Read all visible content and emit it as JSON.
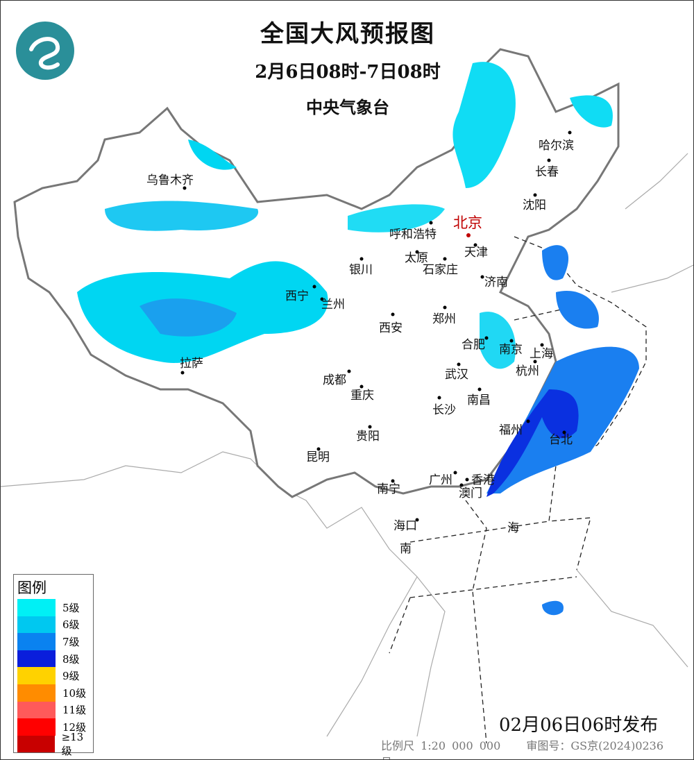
{
  "header": {
    "title": "全国大风预报图",
    "period": "2月6日08时-7日08时",
    "issuer": "中央气象台",
    "logo_icon": "cma-logo"
  },
  "cities": [
    {
      "name": "乌鲁木齐"
    },
    {
      "name": "哈尔滨"
    },
    {
      "name": "长春"
    },
    {
      "name": "沈阳"
    },
    {
      "name": "北京",
      "capital": true
    },
    {
      "name": "呼和浩特"
    },
    {
      "name": "天津"
    },
    {
      "name": "太原"
    },
    {
      "name": "石家庄"
    },
    {
      "name": "银川"
    },
    {
      "name": "济南"
    },
    {
      "name": "西宁"
    },
    {
      "name": "兰州"
    },
    {
      "name": "西安"
    },
    {
      "name": "郑州"
    },
    {
      "name": "合肥"
    },
    {
      "name": "南京"
    },
    {
      "name": "上海"
    },
    {
      "name": "拉萨"
    },
    {
      "name": "杭州"
    },
    {
      "name": "成都"
    },
    {
      "name": "武汉"
    },
    {
      "name": "重庆"
    },
    {
      "name": "长沙"
    },
    {
      "name": "南昌"
    },
    {
      "name": "福州"
    },
    {
      "name": "贵阳"
    },
    {
      "name": "台北"
    },
    {
      "name": "昆明"
    },
    {
      "name": "广州"
    },
    {
      "name": "香港"
    },
    {
      "name": "澳门"
    },
    {
      "name": "南宁"
    },
    {
      "name": "海口"
    }
  ],
  "sea_labels": [
    "南",
    "海"
  ],
  "legend": {
    "title": "图例",
    "items": [
      {
        "label": "5级",
        "color": "#00f0f5"
      },
      {
        "label": "6级",
        "color": "#00c8f0"
      },
      {
        "label": "7级",
        "color": "#0a82f0"
      },
      {
        "label": "8级",
        "color": "#0a1edc"
      },
      {
        "label": "9级",
        "color": "#ffd200"
      },
      {
        "label": "10级",
        "color": "#ff8c00"
      },
      {
        "label": "11级",
        "color": "#ff5a5a"
      },
      {
        "label": "12级",
        "color": "#ff0000"
      },
      {
        "label": "≥13级",
        "color": "#c80000"
      }
    ]
  },
  "issued": "02月06日06时发布",
  "footer": {
    "scale": "比例尺 1:20 000 000",
    "approval": "审图号：GS京(2024)0236号"
  }
}
